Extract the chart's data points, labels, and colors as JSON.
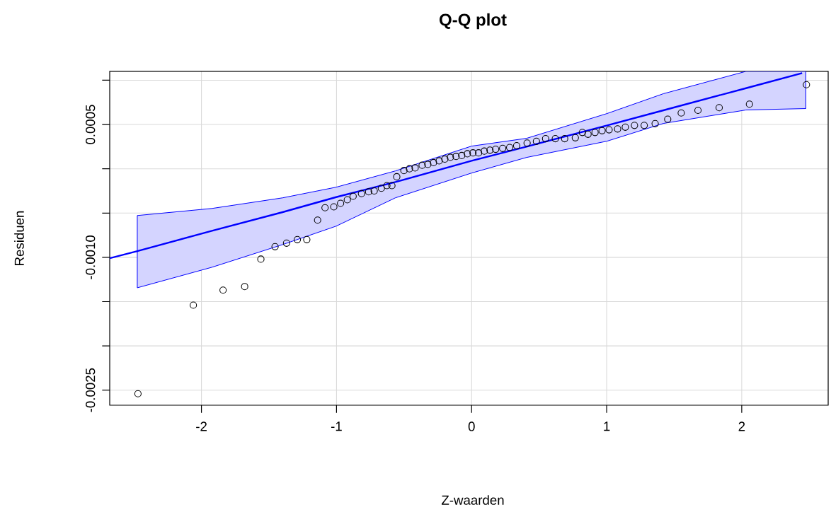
{
  "chart_data": {
    "type": "scatter",
    "title": "Q-Q plot",
    "xlabel": "Z-waarden",
    "ylabel": "Residuen",
    "xlim": [
      -2.679,
      2.64
    ],
    "ylim": [
      -0.00267,
      0.0011
    ],
    "xticks": [
      -2,
      -1,
      0,
      1,
      2
    ],
    "yticks": [
      {
        "value": 0.001,
        "label": null
      },
      {
        "value": 0.0005,
        "label": "0.0005"
      },
      {
        "value": 0,
        "label": null
      },
      {
        "value": -0.0005,
        "label": null
      },
      {
        "value": -0.001,
        "label": "-0.0010"
      },
      {
        "value": -0.0015,
        "label": null
      },
      {
        "value": -0.002,
        "label": null
      },
      {
        "value": -0.0025,
        "label": "-0.0025"
      }
    ],
    "grid": true,
    "series": [
      {
        "marker": "circle",
        "color": "#000000",
        "x": [
          -2.47,
          -2.06,
          -1.84,
          -1.68,
          -1.56,
          -1.455,
          -1.37,
          -1.29,
          -1.22,
          -1.14,
          -1.085,
          -1.02,
          -0.97,
          -0.92,
          -0.877,
          -0.815,
          -0.762,
          -0.721,
          -0.668,
          -0.627,
          -0.59,
          -0.554,
          -0.501,
          -0.46,
          -0.418,
          -0.366,
          -0.324,
          -0.282,
          -0.24,
          -0.198,
          -0.157,
          -0.115,
          -0.073,
          -0.031,
          0.01,
          0.052,
          0.094,
          0.136,
          0.178,
          0.23,
          0.282,
          0.334,
          0.411,
          0.48,
          0.548,
          0.62,
          0.689,
          0.768,
          0.82,
          0.862,
          0.914,
          0.966,
          1.018,
          1.081,
          1.138,
          1.206,
          1.278,
          1.359,
          1.452,
          1.552,
          1.676,
          1.833,
          2.057,
          2.479
        ],
        "values": [
          -0.00254,
          -0.00154,
          -0.00137,
          -0.00133,
          -0.00102,
          -0.00088,
          -0.00084,
          -0.0008,
          -0.0008,
          -0.00058,
          -0.00044,
          -0.00043,
          -0.00039,
          -0.00035,
          -0.00031,
          -0.00028,
          -0.00026,
          -0.00025,
          -0.00022,
          -0.00019,
          -0.00019,
          -9e-05,
          -2e-05,
          0.0,
          1e-05,
          4e-05,
          5e-05,
          7e-05,
          9e-05,
          0.00011,
          0.00013,
          0.00014,
          0.00015,
          0.00017,
          0.00018,
          0.00018,
          0.0002,
          0.00021,
          0.00022,
          0.00023,
          0.00024,
          0.00026,
          0.00029,
          0.00031,
          0.00034,
          0.00034,
          0.00034,
          0.00035,
          0.00041,
          0.00039,
          0.00041,
          0.00043,
          0.00044,
          0.00045,
          0.00047,
          0.00049,
          0.00049,
          0.00051,
          0.00056,
          0.00063,
          0.00066,
          0.00069,
          0.00073,
          0.00095
        ]
      },
      {
        "type": "line",
        "color": "#0000ff",
        "x": [
          -2.679,
          -2.475,
          -1.922,
          -1.399,
          -1.003,
          -0.564,
          0,
          0.407,
          1.003,
          1.42,
          2.031,
          2.447,
          2.475
        ],
        "values": [
          -0.00101,
          -0.00093,
          -0.0007,
          -0.00049,
          -0.00032,
          -0.00015,
          9e-05,
          0.00025,
          0.00049,
          0.00066,
          0.00091,
          0.00108,
          null
        ],
        "lower": [
          null,
          -0.001344,
          -0.001112,
          -0.000856,
          -0.000648,
          -0.000328,
          -4.8e-05,
          0.000128,
          0.000312,
          0.000512,
          0.000664,
          null,
          0.00068
        ],
        "upper": [
          null,
          -0.000528,
          -0.000448,
          -0.000328,
          -0.000208,
          -2.4e-05,
          0.000256,
          0.000344,
          0.000624,
          0.000848,
          0.0011,
          null,
          0.0011
        ]
      }
    ]
  }
}
